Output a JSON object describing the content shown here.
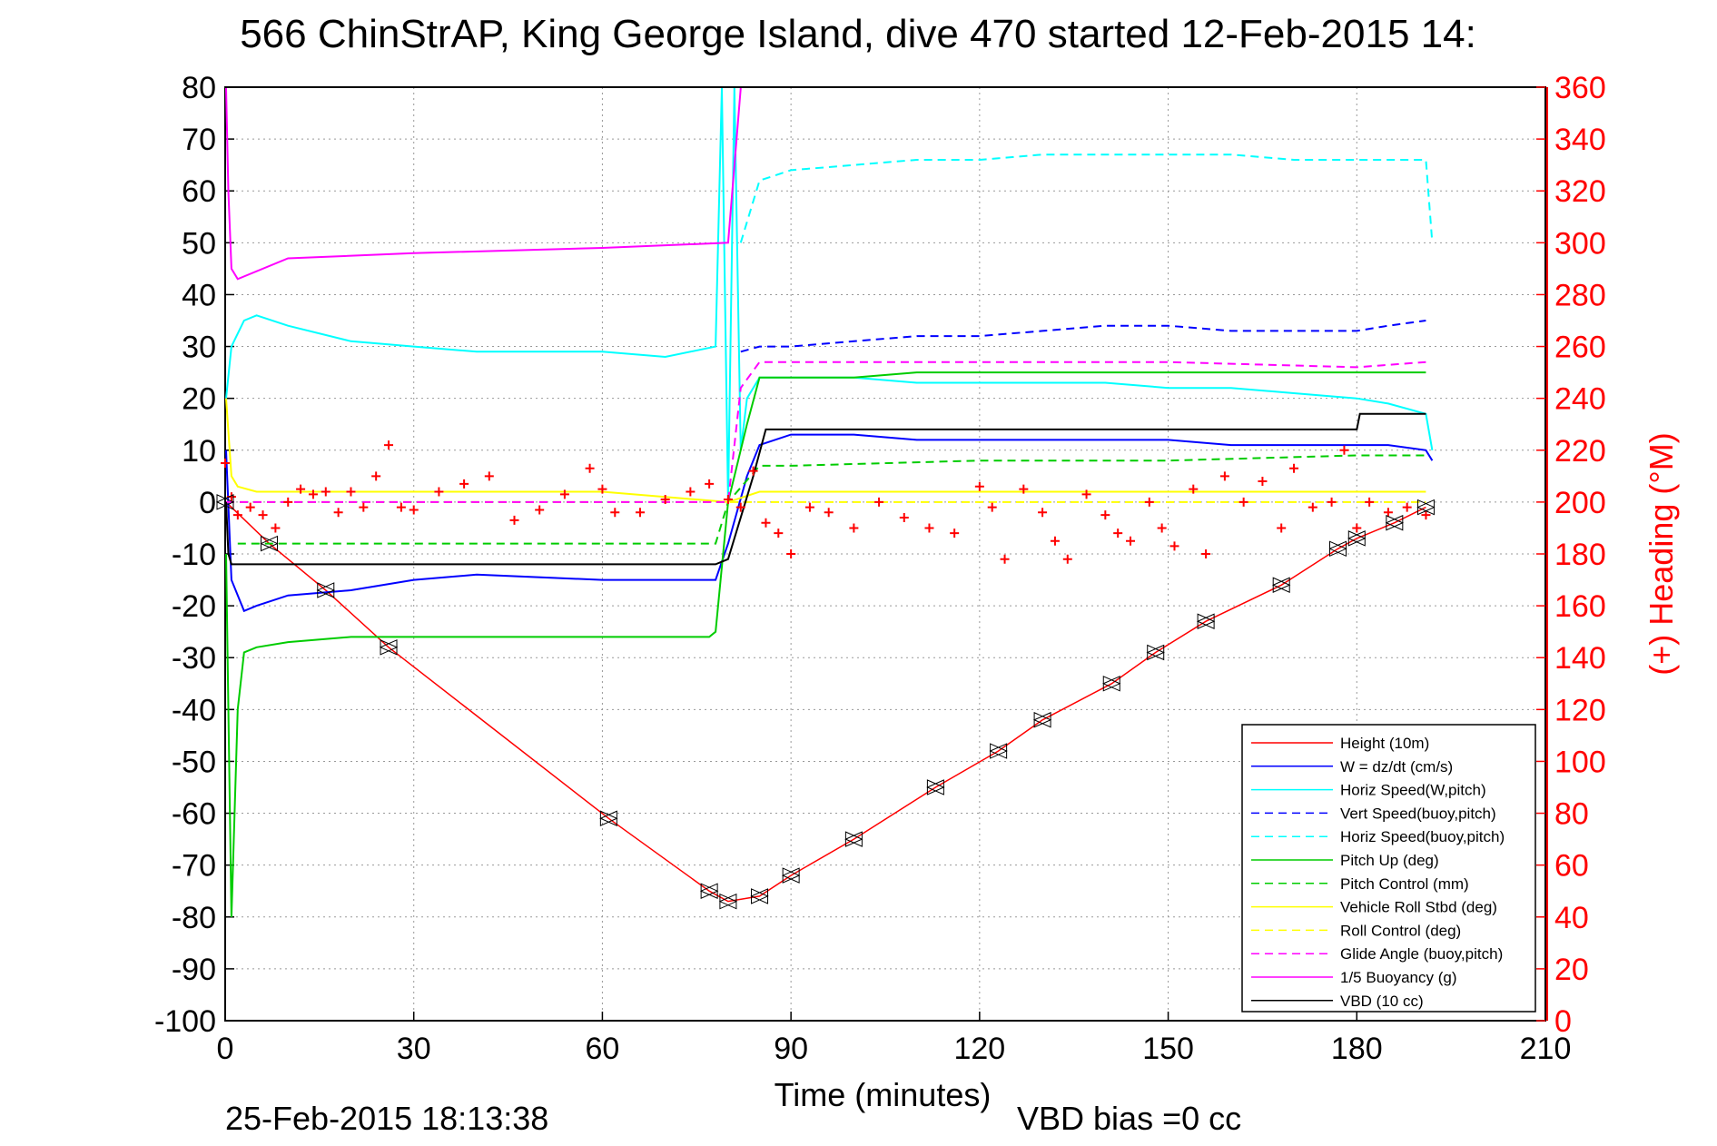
{
  "chart_data": {
    "type": "line",
    "title": "566 ChinStrAP, King George Island, dive 470 started 12-Feb-2015 14:",
    "xlabel": "Time (minutes)",
    "ylabel_right": "(+) Heading (°M)",
    "footer_left": "25-Feb-2015 18:13:38",
    "footer_right": "VBD bias =0 cc",
    "xlim": [
      0,
      210
    ],
    "ylim_left": [
      -100,
      80
    ],
    "ylim_right": [
      0,
      360
    ],
    "x_ticks": [
      "0",
      "30",
      "60",
      "90",
      "120",
      "150",
      "180",
      "210"
    ],
    "y_left_ticks": [
      "80",
      "70",
      "60",
      "50",
      "40",
      "30",
      "20",
      "10",
      "0",
      "-10",
      "-20",
      "-30",
      "-40",
      "-50",
      "-60",
      "-70",
      "-80",
      "-90",
      "-100"
    ],
    "y_right_ticks": [
      "360",
      "340",
      "320",
      "300",
      "280",
      "260",
      "240",
      "220",
      "200",
      "180",
      "160",
      "140",
      "120",
      "100",
      "80",
      "60",
      "40",
      "20",
      "0"
    ],
    "grid": true,
    "legend_position": "bottom-right",
    "series": [
      {
        "name": "Height (10m)",
        "color": "#ff0000",
        "dash": false,
        "x": [
          0,
          7,
          16,
          26,
          61,
          77,
          80,
          85,
          90,
          100,
          113,
          123,
          130,
          141,
          148,
          156,
          168,
          177,
          180,
          186,
          191
        ],
        "y": [
          0,
          -8,
          -17,
          -28,
          -61,
          -75,
          -77,
          -76,
          -72,
          -65,
          -55,
          -48,
          -42,
          -35,
          -29,
          -23,
          -16,
          -9,
          -7,
          -4,
          -1
        ]
      },
      {
        "name": "W = dz/dt (cm/s)",
        "color": "#0000ff",
        "dash": false,
        "x": [
          0,
          1,
          3,
          5,
          10,
          20,
          30,
          40,
          60,
          70,
          78,
          80,
          83,
          85,
          90,
          100,
          110,
          120,
          130,
          140,
          150,
          160,
          170,
          180,
          185,
          191,
          192
        ],
        "y": [
          10,
          -15,
          -21,
          -20,
          -18,
          -17,
          -15,
          -14,
          -15,
          -15,
          -15,
          -8,
          5,
          11,
          13,
          13,
          12,
          12,
          12,
          12,
          12,
          11,
          11,
          11,
          11,
          10,
          8
        ]
      },
      {
        "name": "Horiz Speed(W,pitch)",
        "color": "#00ffff",
        "dash": false,
        "x": [
          0,
          1,
          3,
          5,
          10,
          20,
          30,
          40,
          60,
          70,
          78,
          79,
          80,
          81,
          82,
          83,
          85,
          90,
          100,
          110,
          120,
          130,
          140,
          150,
          160,
          170,
          180,
          185,
          191,
          192
        ],
        "y": [
          20,
          30,
          35,
          36,
          34,
          31,
          30,
          29,
          29,
          28,
          30,
          80,
          0,
          80,
          10,
          20,
          24,
          24,
          24,
          23,
          23,
          23,
          23,
          22,
          22,
          21,
          20,
          19,
          17,
          10
        ]
      },
      {
        "name": "Vert Speed(buoy,pitch)",
        "color": "#0000ff",
        "dash": true,
        "x": [
          82,
          85,
          90,
          100,
          110,
          120,
          130,
          140,
          150,
          160,
          170,
          180,
          185,
          191
        ],
        "y": [
          29,
          30,
          30,
          31,
          32,
          32,
          33,
          34,
          34,
          33,
          33,
          33,
          34,
          35
        ]
      },
      {
        "name": "Horiz Speed(buoy,pitch)",
        "color": "#00ffff",
        "dash": true,
        "x": [
          82,
          85,
          90,
          100,
          110,
          120,
          130,
          140,
          150,
          160,
          170,
          180,
          185,
          191,
          192
        ],
        "y": [
          50,
          62,
          64,
          65,
          66,
          66,
          67,
          67,
          67,
          67,
          66,
          66,
          66,
          66,
          50
        ]
      },
      {
        "name": "Pitch Up (deg)",
        "color": "#00cc00",
        "dash": false,
        "x": [
          0,
          1,
          2,
          3,
          5,
          10,
          20,
          30,
          40,
          60,
          70,
          77,
          78,
          80,
          83,
          85,
          90,
          100,
          110,
          120,
          130,
          140,
          150,
          160,
          170,
          180,
          185,
          191
        ],
        "y": [
          -10,
          -80,
          -40,
          -29,
          -28,
          -27,
          -26,
          -26,
          -26,
          -26,
          -26,
          -26,
          -25,
          0,
          15,
          24,
          24,
          24,
          25,
          25,
          25,
          25,
          25,
          25,
          25,
          25,
          25,
          25
        ]
      },
      {
        "name": "Pitch Control (mm)",
        "color": "#00cc00",
        "dash": true,
        "x": [
          2,
          5,
          30,
          60,
          78,
          80,
          85,
          90,
          120,
          150,
          180,
          191
        ],
        "y": [
          -8,
          -8,
          -8,
          -8,
          -8,
          0,
          7,
          7,
          8,
          8,
          9,
          9
        ]
      },
      {
        "name": "Vehicle Roll Stbd (deg)",
        "color": "#ffff00",
        "dash": false,
        "x": [
          0,
          1,
          2,
          5,
          10,
          30,
          60,
          80,
          85,
          90,
          120,
          150,
          180,
          191
        ],
        "y": [
          20,
          5,
          3,
          2,
          2,
          2,
          2,
          0,
          2,
          2,
          2,
          2,
          2,
          2
        ]
      },
      {
        "name": "Roll Control (deg)",
        "color": "#ffff00",
        "dash": true,
        "x": [
          0,
          5,
          30,
          60,
          90,
          120,
          150,
          180,
          191
        ],
        "y": [
          0,
          0,
          0,
          0,
          0,
          0,
          0,
          0,
          0
        ]
      },
      {
        "name": "Glide Angle (buoy,pitch)",
        "color": "#ff00ff",
        "dash": true,
        "x": [
          0,
          30,
          60,
          80,
          82,
          85,
          90,
          120,
          150,
          180,
          191
        ],
        "y": [
          0,
          0,
          0,
          0,
          22,
          27,
          27,
          27,
          27,
          26,
          27
        ]
      },
      {
        "name": "1/5 Buoyancy (g)",
        "color": "#ff00ff",
        "dash": false,
        "x": [
          0,
          0.5,
          1,
          2,
          10,
          30,
          60,
          80,
          82
        ],
        "y": [
          80,
          60,
          45,
          43,
          47,
          48,
          49,
          50,
          80
        ]
      },
      {
        "name": "VBD (10 cc)",
        "color": "#000000",
        "dash": false,
        "x": [
          0,
          0.5,
          1,
          5,
          30,
          60,
          78,
          80,
          81,
          84,
          86,
          90,
          120,
          150,
          180,
          180.5,
          191
        ],
        "y": [
          0,
          -10,
          -12,
          -12,
          -12,
          -12,
          -12,
          -11,
          -7,
          5,
          14,
          14,
          14,
          14,
          14,
          17,
          17
        ]
      }
    ],
    "heading_series": {
      "name": "(+) Heading (°M)",
      "color": "#ff0000",
      "marker": "+",
      "x": [
        0,
        1,
        2,
        4,
        6,
        8,
        10,
        12,
        14,
        16,
        18,
        20,
        22,
        24,
        26,
        28,
        30,
        34,
        38,
        42,
        46,
        50,
        54,
        58,
        60,
        62,
        66,
        70,
        74,
        77,
        80,
        82,
        84,
        86,
        88,
        90,
        93,
        96,
        100,
        104,
        108,
        112,
        116,
        120,
        122,
        124,
        127,
        130,
        132,
        134,
        137,
        140,
        142,
        144,
        147,
        149,
        151,
        154,
        156,
        159,
        162,
        165,
        168,
        170,
        173,
        176,
        178,
        180,
        182,
        185,
        188,
        191
      ],
      "y": [
        215,
        202,
        195,
        198,
        195,
        190,
        200,
        205,
        203,
        204,
        196,
        204,
        198,
        210,
        222,
        198,
        197,
        204,
        207,
        210,
        193,
        197,
        203,
        213,
        205,
        196,
        196,
        201,
        204,
        207,
        201,
        198,
        212,
        192,
        188,
        180,
        198,
        196,
        190,
        200,
        194,
        190,
        188,
        206,
        198,
        178,
        205,
        196,
        185,
        178,
        203,
        195,
        188,
        185,
        200,
        190,
        183,
        205,
        180,
        210,
        200,
        208,
        190,
        213,
        198,
        200,
        220,
        190,
        200,
        196,
        198,
        195
      ]
    }
  }
}
